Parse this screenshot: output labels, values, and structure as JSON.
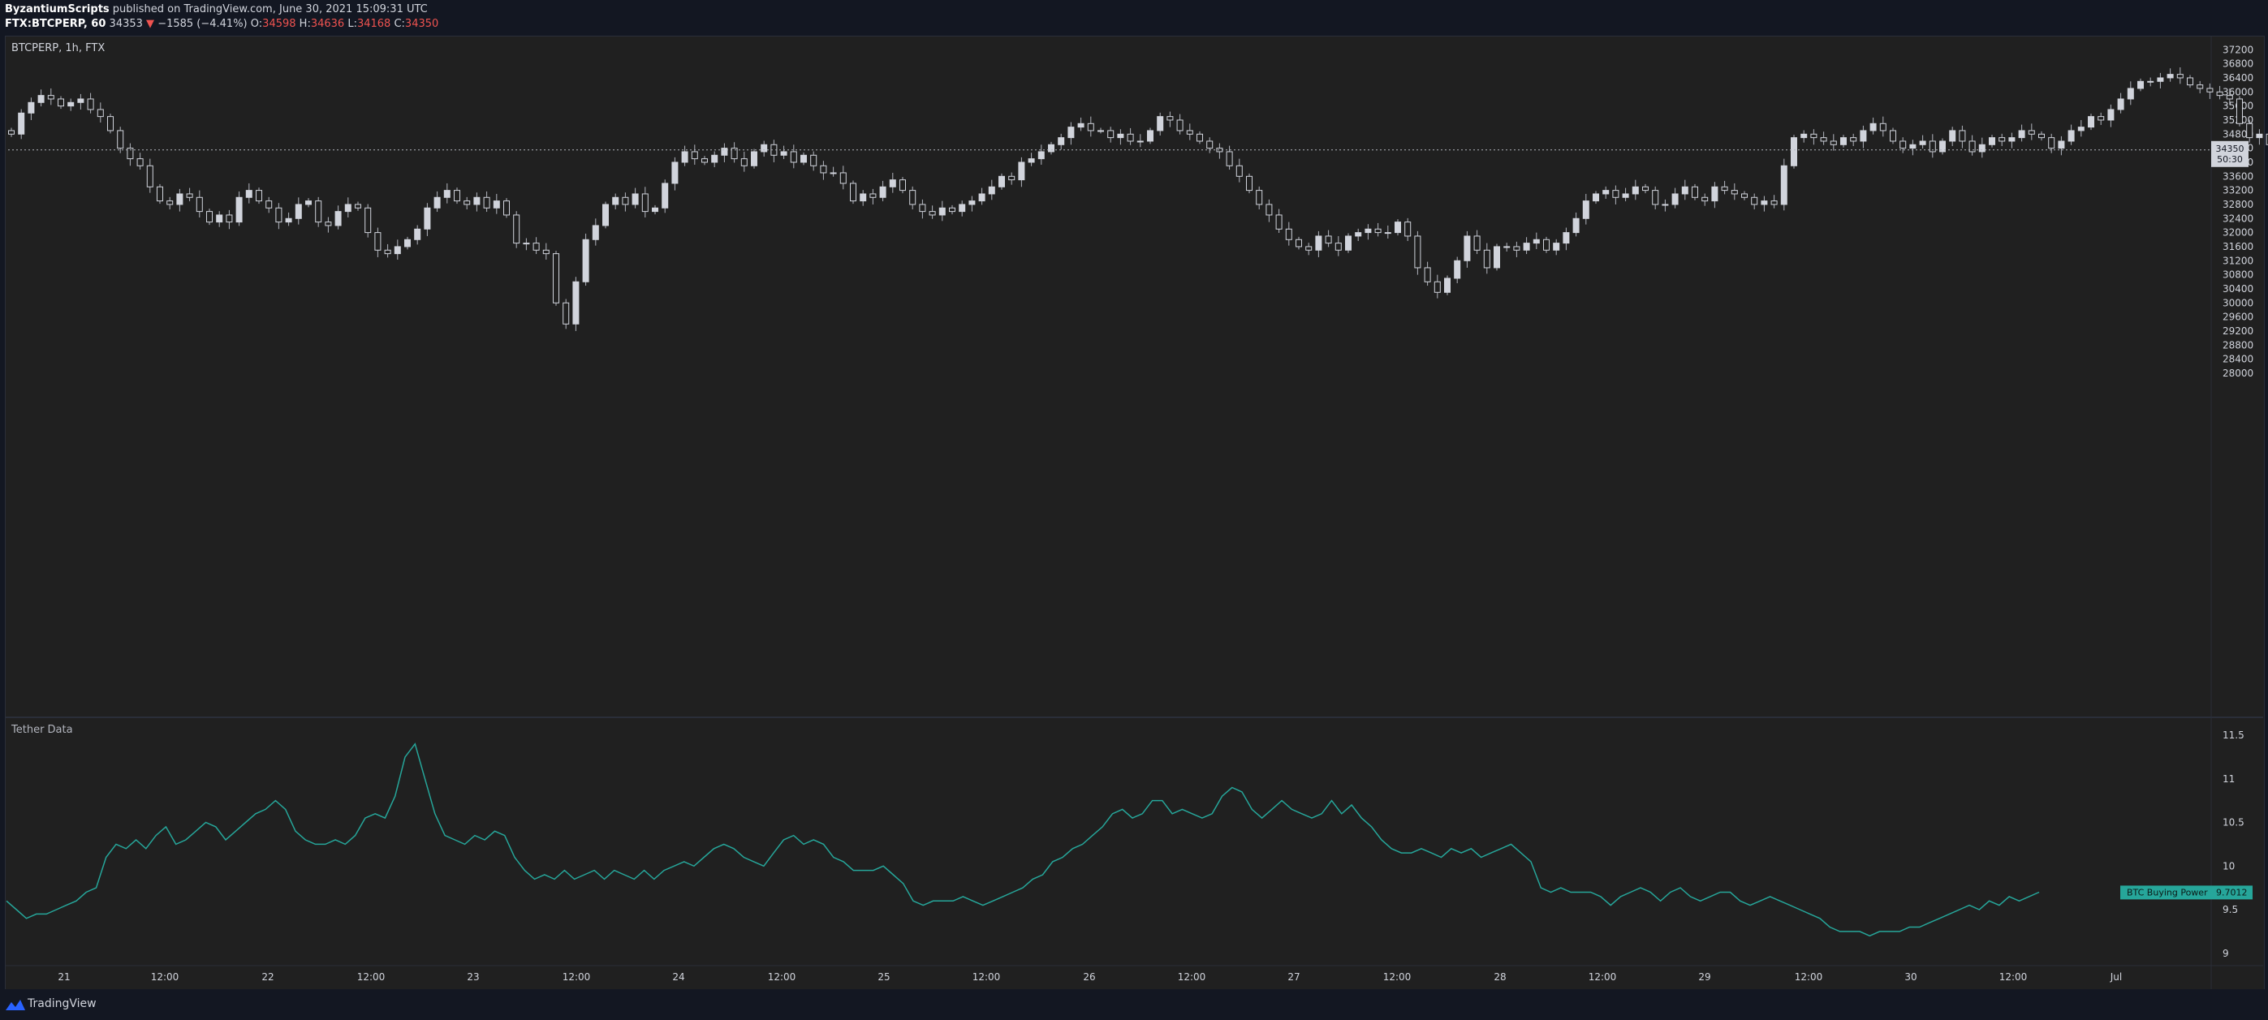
{
  "header": {
    "author": "ByzantiumScripts",
    "published": " published on TradingView.com, June 30, 2021 15:09:31 UTC",
    "symbol_interval": "FTX:BTCPERP, 60",
    "last": "34353",
    "change_arrow": "▼",
    "change": "−1585 (−4.41%)",
    "o_label": "O:",
    "o": "34598",
    "h_label": "H:",
    "h": "34636",
    "l_label": "L:",
    "l": "34168",
    "c_label": "C:",
    "c": "34350"
  },
  "main_pane_label": "BTCPERP, 1h, FTX",
  "indicator_pane_label": "Tether Data",
  "price_badge": {
    "price": "34350",
    "countdown": "50:30"
  },
  "indicator_badge": {
    "name": "BTC Buying Power",
    "value": "9.7012"
  },
  "footer": {
    "brand": "TradingView"
  },
  "colors": {
    "candle": "#d1d4dc",
    "wick": "#b2b5be",
    "indicator": "#26a69a",
    "badge": "#26a69a",
    "background": "#202020"
  },
  "chart_data": [
    {
      "type": "candlestick",
      "title": "BTCPERP, 1h, FTX",
      "y_ticks": [
        37200,
        36800,
        36400,
        36000,
        35600,
        35200,
        34800,
        34400,
        34000,
        33600,
        33200,
        32800,
        32400,
        32000,
        31600,
        31200,
        30800,
        30400,
        30000,
        29600,
        29200,
        28800,
        28400,
        28000
      ],
      "x_ticks": [
        "21",
        "12:00",
        "22",
        "12:00",
        "23",
        "12:00",
        "24",
        "12:00",
        "25",
        "12:00",
        "26",
        "12:00",
        "27",
        "12:00",
        "28",
        "12:00",
        "29",
        "12:00",
        "30",
        "12:00",
        "Jul"
      ],
      "last_price": 34350,
      "close": [
        34800,
        35400,
        35700,
        35900,
        35800,
        35600,
        35700,
        35800,
        35500,
        35300,
        34900,
        34400,
        34100,
        33900,
        33300,
        32900,
        32800,
        33100,
        33000,
        32600,
        32300,
        32500,
        32300,
        33000,
        33200,
        32900,
        32700,
        32300,
        32400,
        32800,
        32900,
        32300,
        32200,
        32600,
        32800,
        32700,
        32000,
        31500,
        31400,
        31600,
        31800,
        32100,
        32700,
        33000,
        33200,
        32900,
        32800,
        33000,
        32700,
        32900,
        32500,
        31700,
        31700,
        31500,
        31400,
        30000,
        29400,
        30600,
        31800,
        32200,
        32800,
        33000,
        32800,
        33100,
        32600,
        32700,
        33400,
        34000,
        34300,
        34100,
        34000,
        34200,
        34400,
        34100,
        33900,
        34300,
        34500,
        34200,
        34300,
        34000,
        34200,
        33900,
        33700,
        33700,
        33400,
        32900,
        33100,
        33000,
        33300,
        33500,
        33200,
        32800,
        32600,
        32500,
        32700,
        32600,
        32800,
        32900,
        33100,
        33300,
        33600,
        33500,
        34000,
        34100,
        34300,
        34500,
        34700,
        35000,
        35100,
        34900,
        34900,
        34700,
        34800,
        34600,
        34600,
        34900,
        35300,
        35200,
        34900,
        34800,
        34600,
        34400,
        34300,
        33900,
        33600,
        33200,
        32800,
        32500,
        32100,
        31800,
        31600,
        31500,
        31900,
        31700,
        31500,
        31900,
        32000,
        32100,
        32000,
        32000,
        32300,
        31900,
        31000,
        30600,
        30300,
        30700,
        31200,
        31900,
        31500,
        31000,
        31600,
        31600,
        31500,
        31700,
        31800,
        31500,
        31700,
        32000,
        32400,
        32900,
        33100,
        33200,
        33000,
        33100,
        33300,
        33200,
        32800,
        32800,
        33100,
        33300,
        33000,
        32900,
        33300,
        33200,
        33100,
        33000,
        32800,
        32900,
        32800,
        33900,
        34700,
        34800,
        34700,
        34600,
        34500,
        34700,
        34600,
        34900,
        35100,
        34900,
        34600,
        34400,
        34500,
        34600,
        34300,
        34600,
        34900,
        34600,
        34300,
        34500,
        34700,
        34600,
        34700,
        34900,
        34800,
        34700,
        34400,
        34600,
        34900,
        35000,
        35300,
        35200,
        35500,
        35800,
        36100,
        36300,
        36300,
        36400,
        36500,
        36400,
        36200,
        36100,
        36000,
        35900,
        35800,
        35100,
        34700,
        34800,
        34500,
        34400,
        34800,
        34700,
        34600,
        34600,
        34500,
        34500,
        34400,
        34300,
        34600,
        34350
      ]
    },
    {
      "type": "line",
      "title": "Tether Data",
      "y_ticks": [
        11.5,
        11,
        10.5,
        10,
        9.5,
        9
      ],
      "x_ticks": [
        "21",
        "12:00",
        "22",
        "12:00",
        "23",
        "12:00",
        "24",
        "12:00",
        "25",
        "12:00",
        "26",
        "12:00",
        "27",
        "12:00",
        "28",
        "12:00",
        "29",
        "12:00",
        "30",
        "12:00",
        "Jul"
      ],
      "series": [
        {
          "name": "BTC Buying Power",
          "last": 9.7012,
          "values": [
            9.6,
            9.5,
            9.4,
            9.45,
            9.45,
            9.5,
            9.55,
            9.6,
            9.7,
            9.75,
            10.1,
            10.25,
            10.2,
            10.3,
            10.2,
            10.35,
            10.45,
            10.25,
            10.3,
            10.4,
            10.5,
            10.45,
            10.3,
            10.4,
            10.5,
            10.6,
            10.65,
            10.75,
            10.65,
            10.4,
            10.3,
            10.25,
            10.25,
            10.3,
            10.25,
            10.35,
            10.55,
            10.6,
            10.55,
            10.8,
            11.25,
            11.4,
            11.0,
            10.6,
            10.35,
            10.3,
            10.25,
            10.35,
            10.3,
            10.4,
            10.35,
            10.1,
            9.95,
            9.85,
            9.9,
            9.85,
            9.95,
            9.85,
            9.9,
            9.95,
            9.85,
            9.95,
            9.9,
            9.85,
            9.95,
            9.85,
            9.95,
            10.0,
            10.05,
            10.0,
            10.1,
            10.2,
            10.25,
            10.2,
            10.1,
            10.05,
            10.0,
            10.15,
            10.3,
            10.35,
            10.25,
            10.3,
            10.25,
            10.1,
            10.05,
            9.95,
            9.95,
            9.95,
            10.0,
            9.9,
            9.8,
            9.6,
            9.55,
            9.6,
            9.6,
            9.6,
            9.65,
            9.6,
            9.55,
            9.6,
            9.65,
            9.7,
            9.75,
            9.85,
            9.9,
            10.05,
            10.1,
            10.2,
            10.25,
            10.35,
            10.45,
            10.6,
            10.65,
            10.55,
            10.6,
            10.75,
            10.75,
            10.6,
            10.65,
            10.6,
            10.55,
            10.6,
            10.8,
            10.9,
            10.85,
            10.65,
            10.55,
            10.65,
            10.75,
            10.65,
            10.6,
            10.55,
            10.6,
            10.75,
            10.6,
            10.7,
            10.55,
            10.45,
            10.3,
            10.2,
            10.15,
            10.15,
            10.2,
            10.15,
            10.1,
            10.2,
            10.15,
            10.2,
            10.1,
            10.15,
            10.2,
            10.25,
            10.15,
            10.05,
            9.75,
            9.7,
            9.75,
            9.7,
            9.7,
            9.7,
            9.65,
            9.55,
            9.65,
            9.7,
            9.75,
            9.7,
            9.6,
            9.7,
            9.75,
            9.65,
            9.6,
            9.65,
            9.7,
            9.7,
            9.6,
            9.55,
            9.6,
            9.65,
            9.6,
            9.55,
            9.5,
            9.45,
            9.4,
            9.3,
            9.25,
            9.25,
            9.25,
            9.2,
            9.25,
            9.25,
            9.25,
            9.3,
            9.3,
            9.35,
            9.4,
            9.45,
            9.5,
            9.55,
            9.5,
            9.6,
            9.55,
            9.65,
            9.6,
            9.65,
            9.7
          ]
        }
      ]
    }
  ]
}
